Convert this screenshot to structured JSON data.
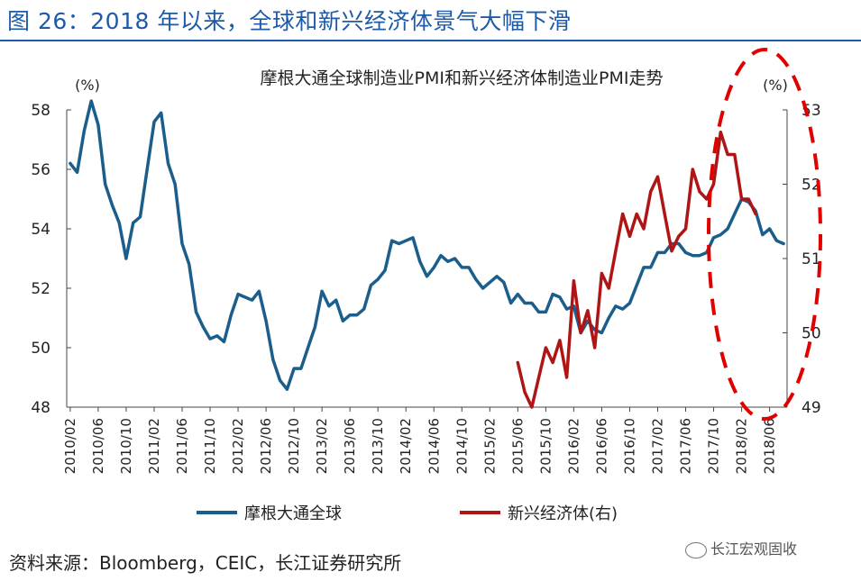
{
  "figure_title": "图 26：2018 年以来，全球和新兴经济体景气大幅下滑",
  "source": "资料来源：Bloomberg，CEIC，长江证券研究所",
  "watermark": "长江宏观固收",
  "colors": {
    "title": "#1e5aa8",
    "series_global": "#1b5e8c",
    "series_em": "#b01515",
    "highlight": "#e00000"
  },
  "chart_data": {
    "type": "line",
    "title": "摩根大通全球制造业PMI和新兴经济体制造业PMI走势",
    "left_axis": {
      "unit": "(%)",
      "ylim": [
        48,
        58
      ],
      "ticks": [
        48,
        50,
        52,
        54,
        56,
        58
      ]
    },
    "right_axis": {
      "unit": "(%)",
      "ylim": [
        49,
        53
      ],
      "ticks": [
        49,
        50,
        51,
        52,
        53
      ]
    },
    "x_tick_labels": [
      "2010/02",
      "2010/06",
      "2010/10",
      "2011/02",
      "2011/06",
      "2011/10",
      "2012/02",
      "2012/06",
      "2012/10",
      "2013/02",
      "2013/06",
      "2013/10",
      "2014/02",
      "2014/06",
      "2014/10",
      "2015/02",
      "2015/06",
      "2015/10",
      "2016/02",
      "2016/06",
      "2016/10",
      "2017/02",
      "2017/06",
      "2017/10",
      "2018/02",
      "2018/06"
    ],
    "x_start": "2010/02",
    "series": [
      {
        "name": "摩根大通全球",
        "axis": "left",
        "color": "#1b5e8c",
        "values": [
          56.2,
          55.9,
          57.3,
          58.3,
          57.5,
          55.5,
          54.8,
          54.2,
          53.0,
          54.2,
          54.4,
          56.0,
          57.6,
          57.9,
          56.2,
          55.5,
          53.5,
          52.8,
          51.2,
          50.7,
          50.3,
          50.4,
          50.2,
          51.1,
          51.8,
          51.7,
          51.6,
          51.9,
          50.9,
          49.6,
          48.9,
          48.6,
          49.3,
          49.3,
          50.0,
          50.7,
          51.9,
          51.4,
          51.6,
          50.9,
          51.1,
          51.1,
          51.3,
          52.1,
          52.3,
          52.6,
          53.6,
          53.5,
          53.6,
          53.7,
          52.9,
          52.4,
          52.7,
          53.1,
          52.9,
          53.0,
          52.7,
          52.7,
          52.3,
          52.0,
          52.2,
          52.4,
          52.2,
          51.5,
          51.8,
          51.5,
          51.5,
          51.2,
          51.2,
          51.8,
          51.7,
          51.3,
          51.4,
          50.5,
          50.9,
          50.6,
          50.5,
          51.0,
          51.4,
          51.3,
          51.5,
          52.1,
          52.7,
          52.7,
          53.2,
          53.2,
          53.5,
          53.5,
          53.2,
          53.1,
          53.1,
          53.2,
          53.7,
          53.8,
          54.0,
          54.5,
          55.0,
          54.9,
          54.6,
          53.8,
          54.0,
          53.6,
          53.5
        ]
      },
      {
        "name": "新兴经济体(右)",
        "axis": "right",
        "color": "#b01515",
        "values": [
          49.6,
          49.2,
          49.0,
          49.4,
          49.8,
          49.6,
          49.9,
          49.4,
          50.7,
          50.0,
          50.3,
          49.8,
          50.8,
          50.6,
          51.1,
          51.6,
          51.3,
          51.6,
          51.4,
          51.9,
          52.1,
          51.6,
          51.1,
          51.3,
          51.4,
          52.2,
          51.9,
          51.8,
          52.0,
          52.7,
          52.4,
          52.4,
          51.8,
          51.8,
          51.6
        ]
      }
    ],
    "em_start": "2015/06",
    "grid": false,
    "legend_position": "bottom"
  }
}
